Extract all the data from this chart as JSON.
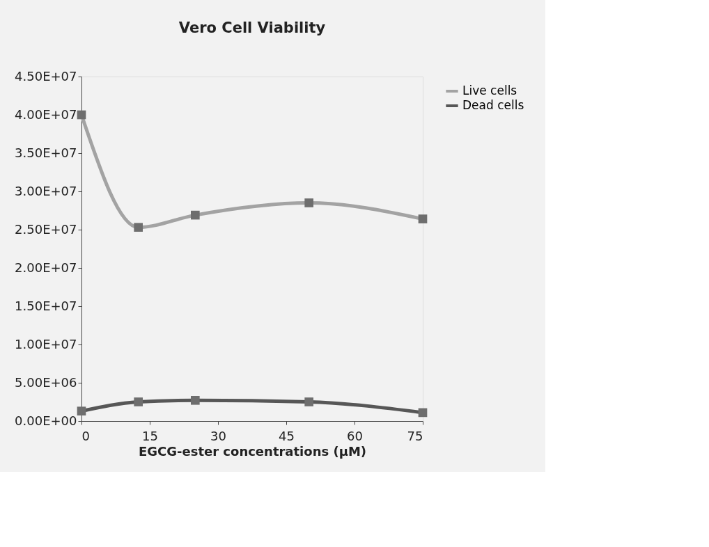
{
  "chart_data": {
    "type": "line",
    "title": "Vero Cell Viability",
    "xlabel": "EGCG-ester concentrations (µM)",
    "x": [
      0,
      12.5,
      25,
      50,
      75
    ],
    "series": [
      {
        "name": "Live cells",
        "color": "#a3a3a3",
        "values": [
          40000000,
          25300000,
          26900000,
          28500000,
          26400000
        ]
      },
      {
        "name": "Dead cells",
        "color": "#575757",
        "values": [
          1300000,
          2500000,
          2700000,
          2500000,
          1100000
        ]
      }
    ],
    "xlim": [
      0,
      75
    ],
    "xticks": [
      0,
      15,
      30,
      45,
      60,
      75
    ],
    "ylim": [
      0,
      45000000
    ],
    "yticks": [
      {
        "value": 0,
        "label": "0.00E+00"
      },
      {
        "value": 5000000,
        "label": "5.00E+06"
      },
      {
        "value": 10000000,
        "label": "1.00E+07"
      },
      {
        "value": 15000000,
        "label": "1.50E+07"
      },
      {
        "value": 20000000,
        "label": "2.00E+07"
      },
      {
        "value": 25000000,
        "label": "2.50E+07"
      },
      {
        "value": 30000000,
        "label": "3.00E+07"
      },
      {
        "value": 35000000,
        "label": "3.50E+07"
      },
      {
        "value": 40000000,
        "label": "4.00E+07"
      },
      {
        "value": 45000000,
        "label": "4.50E+07"
      }
    ],
    "grid": false,
    "legend": "right",
    "marker": "square",
    "line_style": "solid"
  }
}
